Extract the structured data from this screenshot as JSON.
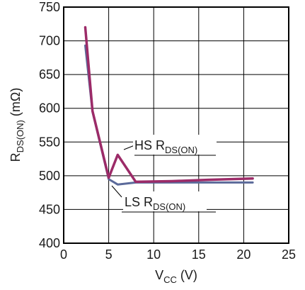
{
  "chart_data": {
    "type": "line",
    "xlim": [
      0,
      25
    ],
    "ylim": [
      400,
      750
    ],
    "xticks": [
      0,
      5,
      10,
      15,
      20,
      25
    ],
    "yticks": [
      400,
      450,
      500,
      550,
      600,
      650,
      700,
      750
    ],
    "grid": true,
    "xlabel": {
      "main": "V",
      "sub": "CC",
      "rest": " (V)"
    },
    "ylabel": {
      "main": "R",
      "sub": "DS(ON)",
      "rest": " (mΩ)"
    },
    "series": [
      {
        "name": {
          "main": "LS R",
          "sub": "DS(ON)"
        },
        "color": "#5b6a9a",
        "x": [
          2.4,
          3.2,
          5.0,
          6.0,
          8.0,
          12.0,
          16.0,
          21.0
        ],
        "y": [
          693,
          595,
          495,
          487,
          490,
          490,
          490,
          490
        ]
      },
      {
        "name": {
          "main": "HS R",
          "sub": "DS(ON)"
        },
        "color": "#9c2b68",
        "x": [
          2.4,
          3.2,
          5.0,
          6.0,
          8.0,
          12.0,
          16.0,
          21.0
        ],
        "y": [
          720,
          596,
          497,
          531,
          491,
          492,
          494,
          496
        ]
      }
    ]
  }
}
